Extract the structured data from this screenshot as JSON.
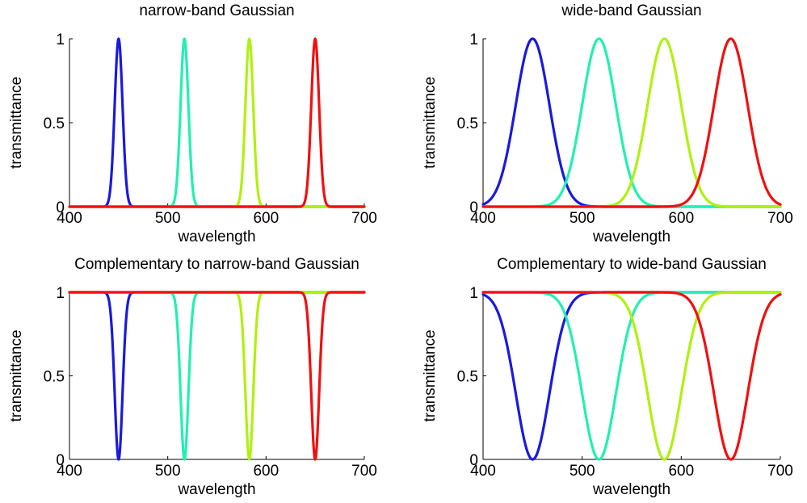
{
  "chart_data": [
    {
      "type": "line",
      "title": "narrow-band Gaussian",
      "xlabel": "wavelength",
      "ylabel": "transmittance",
      "xlim": [
        400,
        700
      ],
      "ylim": [
        0,
        1
      ],
      "xticks": [
        "400",
        "500",
        "600",
        "700"
      ],
      "yticks": [
        "0",
        "0.5",
        "1"
      ],
      "grid": false,
      "shape": "gaussian",
      "sigma": 4,
      "series": [
        {
          "center": 450,
          "color": "#1a1adc"
        },
        {
          "center": 517,
          "color": "#22f0b0"
        },
        {
          "center": 583,
          "color": "#b0f010"
        },
        {
          "center": 650,
          "color": "#f01010"
        }
      ]
    },
    {
      "type": "line",
      "title": "wide-band Gaussian",
      "xlabel": "wavelength",
      "ylabel": "transmittance",
      "xlim": [
        400,
        700
      ],
      "ylim": [
        0,
        1
      ],
      "xticks": [
        "400",
        "500",
        "600",
        "700"
      ],
      "yticks": [
        "0",
        "0.5",
        "1"
      ],
      "grid": false,
      "shape": "gaussian",
      "sigma": 17,
      "series": [
        {
          "center": 450,
          "color": "#1a1adc"
        },
        {
          "center": 517,
          "color": "#22f0b0"
        },
        {
          "center": 583,
          "color": "#b0f010"
        },
        {
          "center": 650,
          "color": "#f01010"
        }
      ]
    },
    {
      "type": "line",
      "title": "Complementary to narrow-band Gaussian",
      "xlabel": "wavelength",
      "ylabel": "transmittance",
      "xlim": [
        400,
        700
      ],
      "ylim": [
        0,
        1
      ],
      "xticks": [
        "400",
        "500",
        "600",
        "700"
      ],
      "yticks": [
        "0",
        "0.5",
        "1"
      ],
      "grid": false,
      "shape": "complementary-gaussian",
      "sigma": 4,
      "series": [
        {
          "center": 450,
          "color": "#1a1adc"
        },
        {
          "center": 517,
          "color": "#22f0b0"
        },
        {
          "center": 583,
          "color": "#b0f010"
        },
        {
          "center": 650,
          "color": "#f01010"
        }
      ]
    },
    {
      "type": "line",
      "title": "Complementary to wide-band Gaussian",
      "xlabel": "wavelength",
      "ylabel": "transmittance",
      "xlim": [
        400,
        700
      ],
      "ylim": [
        0,
        1
      ],
      "xticks": [
        "400",
        "500",
        "600",
        "700"
      ],
      "yticks": [
        "0",
        "0.5",
        "1"
      ],
      "grid": false,
      "shape": "complementary-gaussian",
      "sigma": 17,
      "series": [
        {
          "center": 450,
          "color": "#1a1adc"
        },
        {
          "center": 517,
          "color": "#22f0b0"
        },
        {
          "center": 583,
          "color": "#b0f010"
        },
        {
          "center": 650,
          "color": "#f01010"
        }
      ]
    }
  ]
}
